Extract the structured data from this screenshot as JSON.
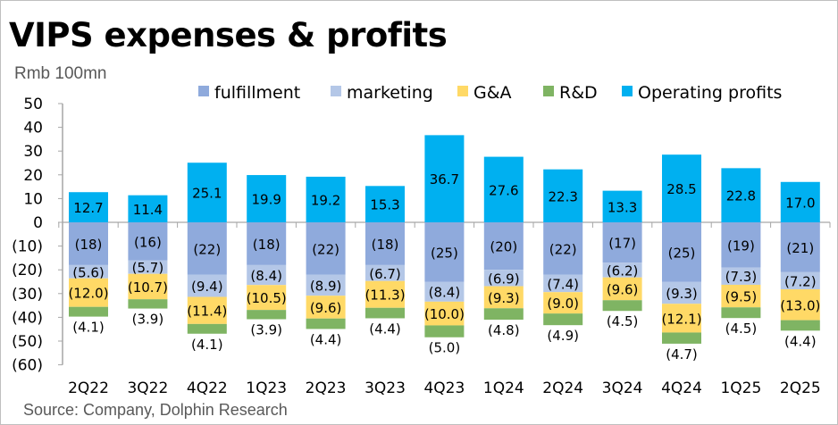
{
  "chart_data": {
    "type": "bar",
    "stacked": true,
    "title": "VIPS expenses & profits",
    "ylabel": "Rmb 100mn",
    "source": "Source: Company, Dolphin Research",
    "ylim": [
      -60,
      50
    ],
    "yticks": [
      50,
      40,
      30,
      20,
      10,
      0,
      -10,
      -20,
      -30,
      -40,
      -50,
      -60
    ],
    "ytick_labels": [
      "50",
      "40",
      "30",
      "20",
      "10",
      "0",
      "(10)",
      "(20)",
      "(30)",
      "(40)",
      "(50)",
      "(60)"
    ],
    "grid": false,
    "legend_position": "top",
    "categories": [
      "2Q22",
      "3Q22",
      "4Q22",
      "1Q23",
      "2Q23",
      "3Q23",
      "4Q23",
      "1Q24",
      "2Q24",
      "3Q24",
      "4Q24",
      "1Q25",
      "2Q25"
    ],
    "series": [
      {
        "name": "fulfillment",
        "color": "#8faadc",
        "values": [
          -18,
          -16,
          -22,
          -18,
          -22,
          -18,
          -25,
          -20,
          -22,
          -17,
          -25,
          -19,
          -21
        ],
        "labels": [
          "(18)",
          "(16)",
          "(22)",
          "(18)",
          "(22)",
          "(18)",
          "(25)",
          "(20)",
          "(22)",
          "(17)",
          "(25)",
          "(19)",
          "(21)"
        ]
      },
      {
        "name": "marketing",
        "color": "#b4c7e7",
        "values": [
          -5.6,
          -5.7,
          -9.4,
          -8.4,
          -8.9,
          -6.7,
          -8.4,
          -6.9,
          -7.4,
          -6.2,
          -9.3,
          -7.3,
          -7.2
        ],
        "labels": [
          "(5.6)",
          "(5.7)",
          "(9.4)",
          "(8.4)",
          "(8.9)",
          "(6.7)",
          "(8.4)",
          "(6.9)",
          "(7.4)",
          "(6.2)",
          "(9.3)",
          "(7.3)",
          "(7.2)"
        ]
      },
      {
        "name": "G&A",
        "color": "#ffd966",
        "values": [
          -12.0,
          -10.7,
          -11.4,
          -10.5,
          -9.6,
          -11.3,
          -10.0,
          -9.3,
          -9.0,
          -9.6,
          -12.1,
          -9.5,
          -13.0
        ],
        "labels": [
          "(12.0)",
          "(10.7)",
          "(11.4)",
          "(10.5)",
          "(9.6)",
          "(11.3)",
          "(10.0)",
          "(9.3)",
          "(9.0)",
          "(9.6)",
          "(12.1)",
          "(9.5)",
          "(13.0)"
        ]
      },
      {
        "name": "R&D",
        "color": "#7fb463",
        "values": [
          -4.1,
          -3.9,
          -4.1,
          -3.9,
          -4.4,
          -4.4,
          -5.0,
          -4.8,
          -4.9,
          -4.5,
          -4.7,
          -4.5,
          -4.4
        ],
        "labels": [
          "(4.1)",
          "(3.9)",
          "(4.1)",
          "(3.9)",
          "(4.4)",
          "(4.4)",
          "(5.0)",
          "(4.8)",
          "(4.9)",
          "(4.5)",
          "(4.7)",
          "(4.5)",
          "(4.4)"
        ]
      },
      {
        "name": "Operating profits",
        "color": "#00b0f0",
        "values": [
          12.7,
          11.4,
          25.1,
          19.9,
          19.2,
          15.3,
          36.7,
          27.6,
          22.3,
          13.3,
          28.5,
          22.8,
          17.0
        ],
        "labels": [
          "12.7",
          "11.4",
          "25.1",
          "19.9",
          "19.2",
          "15.3",
          "36.7",
          "27.6",
          "22.3",
          "13.3",
          "28.5",
          "22.8",
          "17.0"
        ]
      }
    ]
  }
}
